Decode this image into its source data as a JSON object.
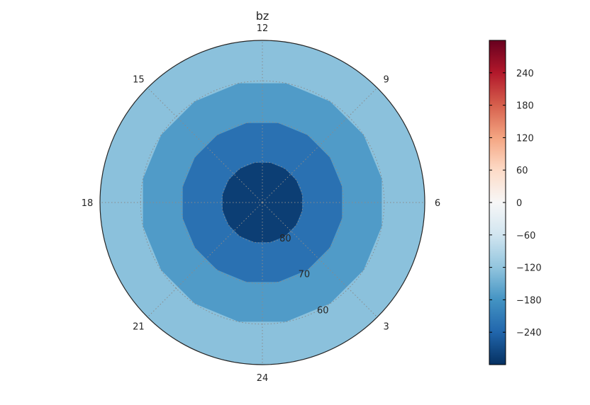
{
  "chart_data": {
    "type": "heatmap",
    "projection": "polar",
    "title": "bz",
    "angular_tick_labels": [
      "12",
      "9",
      "6",
      "3",
      "24",
      "21",
      "18",
      "15"
    ],
    "radial_tick_labels": [
      "80",
      "70",
      "60"
    ],
    "latitude_bands": [
      {
        "lat_min": 80,
        "lat_max": 90,
        "value": -285
      },
      {
        "lat_min": 70,
        "lat_max": 80,
        "value": -225
      },
      {
        "lat_min": 60,
        "lat_max": 70,
        "value": -170
      },
      {
        "lat_min": 50,
        "lat_max": 60,
        "value": -125
      }
    ],
    "colorbar": {
      "colormap": "RdBu_r",
      "vmin": -300,
      "vmax": 300,
      "tick_labels": [
        "240",
        "180",
        "120",
        "60",
        "0",
        "−60",
        "−120",
        "−180",
        "−240"
      ],
      "tick_values": [
        240,
        180,
        120,
        60,
        0,
        -60,
        -120,
        -180,
        -240
      ]
    },
    "grid": true,
    "colors": {
      "band_80_90": "#053061",
      "band_70_80": "#2166ac",
      "band_60_70": "#4393c3",
      "band_50_60": "#92c5de"
    }
  }
}
